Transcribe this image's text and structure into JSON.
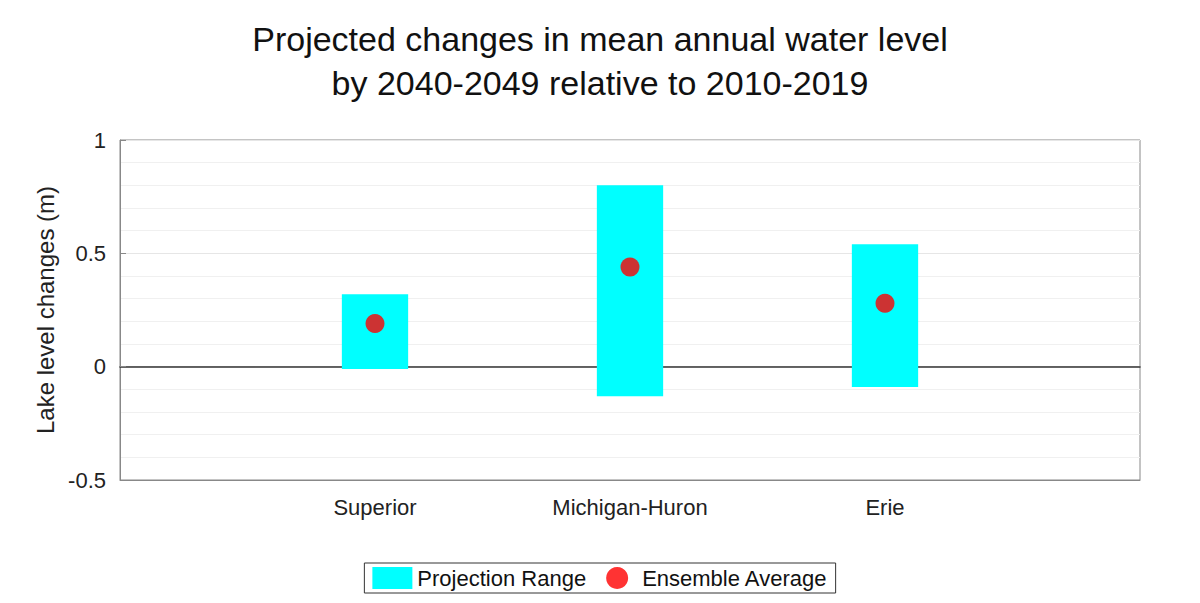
{
  "chart_data": {
    "type": "range",
    "title": "Projected changes in mean annual water level\nby 2040-2049 relative to 2010-2019",
    "y_label": "Lake level changes (m)",
    "categories": [
      null,
      "Superior",
      "Michigan-Huron",
      "Erie",
      null
    ],
    "series": [
      {
        "name": "Projection Range",
        "type": "range",
        "color": "#00ffff",
        "low": [
          null,
          -0.01,
          -0.13,
          -0.09,
          null
        ],
        "high": [
          null,
          0.32,
          0.8,
          0.54,
          null
        ]
      },
      {
        "name": "Ensemble Average",
        "type": "scatter",
        "color": "#ff0000",
        "marker": "circle",
        "values": [
          null,
          0.19,
          0.44,
          0.28,
          null
        ]
      }
    ],
    "ylim": [
      -0.5,
      1
    ],
    "yticks": [
      -0.5,
      0,
      0.5,
      1
    ],
    "grid": true,
    "legend": "bottom"
  }
}
